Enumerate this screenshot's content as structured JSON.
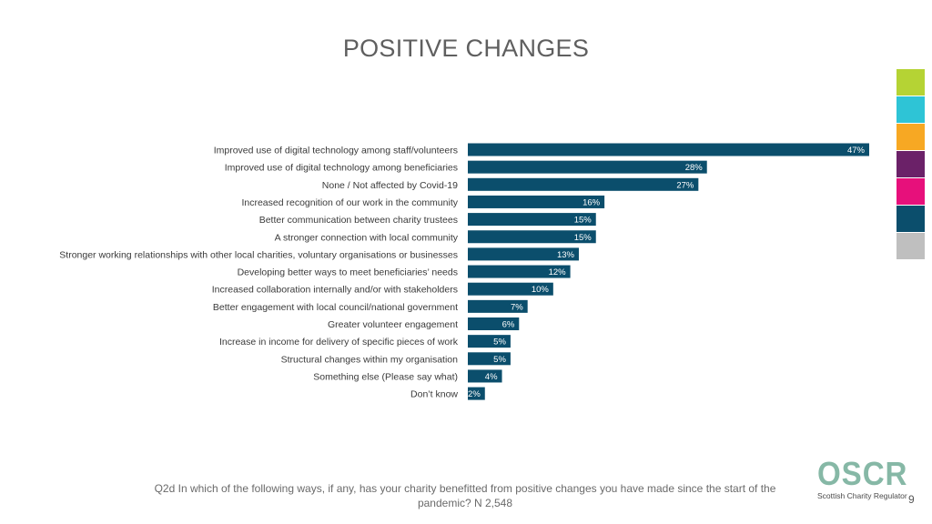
{
  "title": "POSITIVE CHANGES",
  "swatch_colors": [
    "#b5d334",
    "#2ec4d6",
    "#f7a823",
    "#6b2168",
    "#e7107b",
    "#0b4e6c",
    "#bfbfbf"
  ],
  "bar_color": "#0b4e6c",
  "chart_data": {
    "type": "bar",
    "orientation": "horizontal",
    "categories": [
      "Improved use of digital technology among staff/volunteers",
      "Improved use of digital technology among beneficiaries",
      "None / Not affected by Covid-19",
      "Increased recognition of our work in the community",
      "Better communication between charity trustees",
      "A stronger connection with local community",
      "Stronger working relationships with other local charities, voluntary organisations or businesses",
      "Developing better ways to meet beneficiaries’ needs",
      "Increased collaboration internally and/or with stakeholders",
      "Better engagement with local council/national government",
      "Greater volunteer engagement",
      "Increase in income for delivery of specific pieces of work",
      "Structural changes within my organisation",
      "Something else (Please say what)",
      "Don’t know"
    ],
    "values": [
      47,
      28,
      27,
      16,
      15,
      15,
      13,
      12,
      10,
      7,
      6,
      5,
      5,
      4,
      2
    ],
    "value_labels": [
      "47%",
      "28%",
      "27%",
      "16%",
      "15%",
      "15%",
      "13%",
      "12%",
      "10%",
      "7%",
      "6%",
      "5%",
      "5%",
      "4%",
      "2%"
    ],
    "unit": "%",
    "xlim": [
      0,
      50
    ]
  },
  "footer": {
    "question": "Q2d In which of the following ways, if any, has your charity benefitted from positive changes you have made since the start of the pandemic? N 2,548"
  },
  "logo": {
    "mark": "OSCR",
    "tagline": "Scottish Charity Regulator"
  },
  "page_number": "9"
}
